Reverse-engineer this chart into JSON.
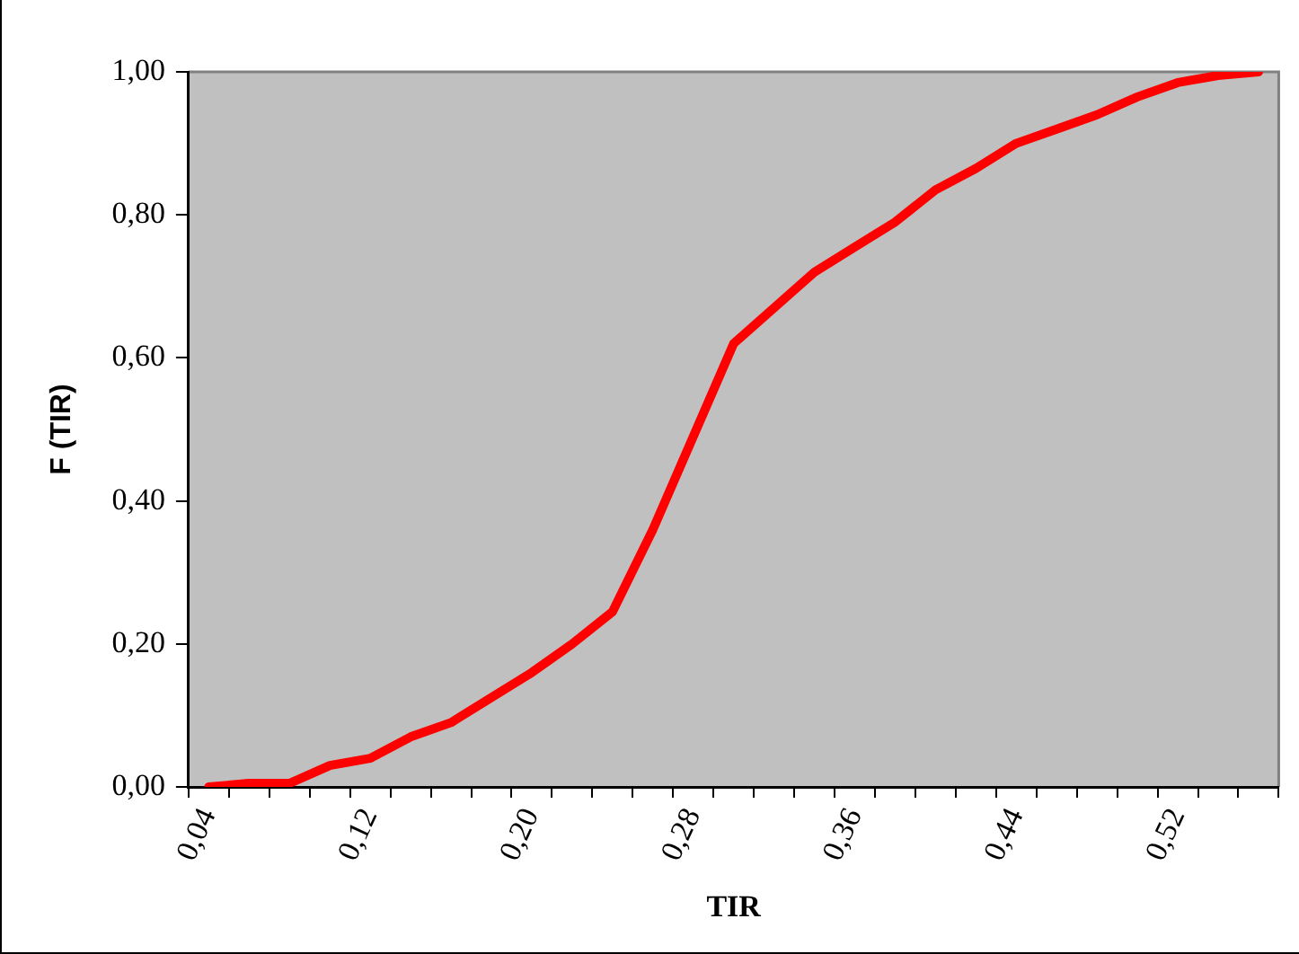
{
  "chart_data": {
    "type": "line",
    "xlabel": "TIR",
    "ylabel": "F (TIR)",
    "categories": [
      "0,04",
      null,
      null,
      null,
      "0,12",
      null,
      null,
      null,
      "0,20",
      null,
      null,
      null,
      "0,28",
      null,
      null,
      null,
      "0,36",
      null,
      null,
      null,
      "0,44",
      null,
      null,
      null,
      "0,52",
      null,
      null
    ],
    "series": [
      {
        "color": "#ff0000",
        "values": [
          0.0,
          0.005,
          0.005,
          0.03,
          0.04,
          0.07,
          0.09,
          0.125,
          0.16,
          0.2,
          0.245,
          0.36,
          0.49,
          0.62,
          0.67,
          0.72,
          0.755,
          0.79,
          0.835,
          0.865,
          0.9,
          0.92,
          0.94,
          0.965,
          0.985,
          0.995,
          1.0
        ]
      }
    ],
    "ylim": [
      0,
      1
    ],
    "yticks": [
      {
        "value": 0,
        "label": "0,00"
      },
      {
        "value": 0.2,
        "label": "0,20"
      },
      {
        "value": 0.4,
        "label": "0,40"
      },
      {
        "value": 0.6,
        "label": "0,60"
      },
      {
        "value": 0.8,
        "label": "0,80"
      },
      {
        "value": 1,
        "label": "1,00"
      }
    ],
    "grid": false,
    "legend": false,
    "marker": "none",
    "line_style": "solid"
  }
}
